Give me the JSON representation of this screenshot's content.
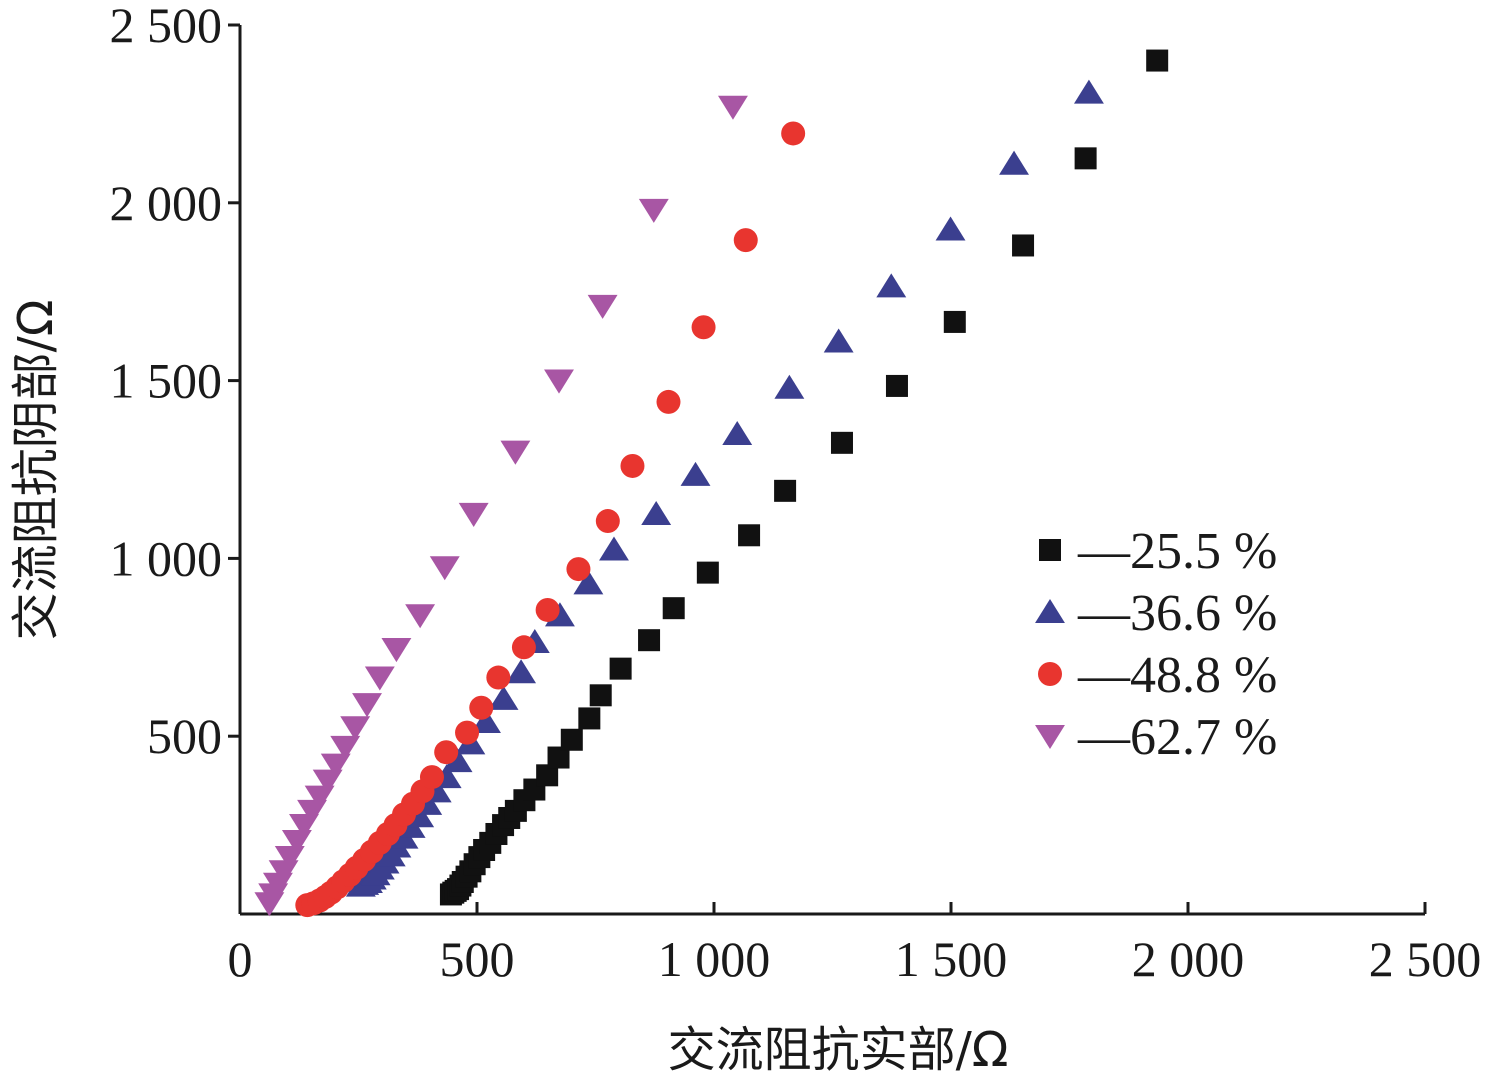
{
  "chart_data": {
    "type": "scatter",
    "xlabel": "交流阻抗实部/Ω",
    "ylabel": "交流阻抗阴部/Ω",
    "xlim": [
      0,
      2500
    ],
    "ylim": [
      0,
      2500
    ],
    "x_ticks": [
      0,
      500,
      1000,
      1500,
      2000,
      2500
    ],
    "x_tick_labels": [
      "0",
      "500",
      "1 000",
      "1 500",
      "2 000",
      "2 500"
    ],
    "y_ticks": [
      500,
      1000,
      1500,
      2000,
      2500
    ],
    "y_tick_labels": [
      "500",
      "1 000",
      "1 500",
      "2 000",
      "2 500"
    ],
    "grid": false,
    "legend_position": "right",
    "series": [
      {
        "name": "—25.5 %",
        "marker": "square",
        "color": "#111111",
        "points": [
          [
            445,
            55
          ],
          [
            450,
            60
          ],
          [
            455,
            65
          ],
          [
            460,
            70
          ],
          [
            465,
            80
          ],
          [
            470,
            90
          ],
          [
            478,
            105
          ],
          [
            486,
            120
          ],
          [
            495,
            140
          ],
          [
            505,
            160
          ],
          [
            515,
            180
          ],
          [
            528,
            200
          ],
          [
            541,
            225
          ],
          [
            555,
            250
          ],
          [
            568,
            270
          ],
          [
            582,
            290
          ],
          [
            600,
            320
          ],
          [
            621,
            350
          ],
          [
            648,
            390
          ],
          [
            672,
            440
          ],
          [
            700,
            490
          ],
          [
            737,
            550
          ],
          [
            761,
            615
          ],
          [
            803,
            690
          ],
          [
            863,
            770
          ],
          [
            915,
            860
          ],
          [
            987,
            960
          ],
          [
            1074,
            1065
          ],
          [
            1150,
            1190
          ],
          [
            1270,
            1325
          ],
          [
            1386,
            1485
          ],
          [
            1508,
            1665
          ],
          [
            1652,
            1880
          ],
          [
            1784,
            2125
          ],
          [
            1935,
            2400
          ]
        ]
      },
      {
        "name": "—36.6 %",
        "marker": "triangle-up",
        "color": "#3b3f8f",
        "points": [
          [
            255,
            80
          ],
          [
            262,
            85
          ],
          [
            270,
            90
          ],
          [
            278,
            100
          ],
          [
            286,
            112
          ],
          [
            295,
            128
          ],
          [
            305,
            145
          ],
          [
            318,
            165
          ],
          [
            330,
            190
          ],
          [
            345,
            215
          ],
          [
            360,
            245
          ],
          [
            378,
            275
          ],
          [
            395,
            310
          ],
          [
            415,
            345
          ],
          [
            436,
            385
          ],
          [
            459,
            430
          ],
          [
            486,
            480
          ],
          [
            519,
            540
          ],
          [
            556,
            605
          ],
          [
            593,
            680
          ],
          [
            622,
            765
          ],
          [
            675,
            840
          ],
          [
            735,
            930
          ],
          [
            789,
            1025
          ],
          [
            878,
            1125
          ],
          [
            961,
            1235
          ],
          [
            1049,
            1350
          ],
          [
            1159,
            1480
          ],
          [
            1263,
            1610
          ],
          [
            1374,
            1765
          ],
          [
            1499,
            1925
          ],
          [
            1633,
            2110
          ],
          [
            1791,
            2310
          ]
        ]
      },
      {
        "name": "—48.8 %",
        "marker": "circle",
        "color": "#e8352f",
        "points": [
          [
            142,
            25
          ],
          [
            155,
            30
          ],
          [
            168,
            38
          ],
          [
            180,
            48
          ],
          [
            192,
            60
          ],
          [
            205,
            75
          ],
          [
            218,
            92
          ],
          [
            232,
            110
          ],
          [
            246,
            130
          ],
          [
            262,
            152
          ],
          [
            278,
            175
          ],
          [
            295,
            200
          ],
          [
            312,
            225
          ],
          [
            328,
            250
          ],
          [
            346,
            280
          ],
          [
            365,
            310
          ],
          [
            385,
            345
          ],
          [
            405,
            385
          ],
          [
            435,
            455
          ],
          [
            479,
            510
          ],
          [
            509,
            580
          ],
          [
            545,
            665
          ],
          [
            599,
            750
          ],
          [
            649,
            855
          ],
          [
            714,
            970
          ],
          [
            776,
            1105
          ],
          [
            828,
            1260
          ],
          [
            904,
            1440
          ],
          [
            978,
            1650
          ],
          [
            1067,
            1895
          ],
          [
            1167,
            2195
          ]
        ]
      },
      {
        "name": "—62.7 %",
        "marker": "triangle-down",
        "color": "#a856a4",
        "points": [
          [
            62,
            30
          ],
          [
            70,
            55
          ],
          [
            80,
            85
          ],
          [
            92,
            120
          ],
          [
            105,
            160
          ],
          [
            120,
            205
          ],
          [
            135,
            250
          ],
          [
            152,
            290
          ],
          [
            168,
            330
          ],
          [
            185,
            375
          ],
          [
            202,
            420
          ],
          [
            222,
            470
          ],
          [
            243,
            525
          ],
          [
            268,
            590
          ],
          [
            295,
            665
          ],
          [
            330,
            745
          ],
          [
            380,
            840
          ],
          [
            432,
            975
          ],
          [
            493,
            1125
          ],
          [
            581,
            1300
          ],
          [
            673,
            1500
          ],
          [
            765,
            1710
          ],
          [
            873,
            1980
          ],
          [
            1040,
            2270
          ]
        ]
      }
    ]
  }
}
